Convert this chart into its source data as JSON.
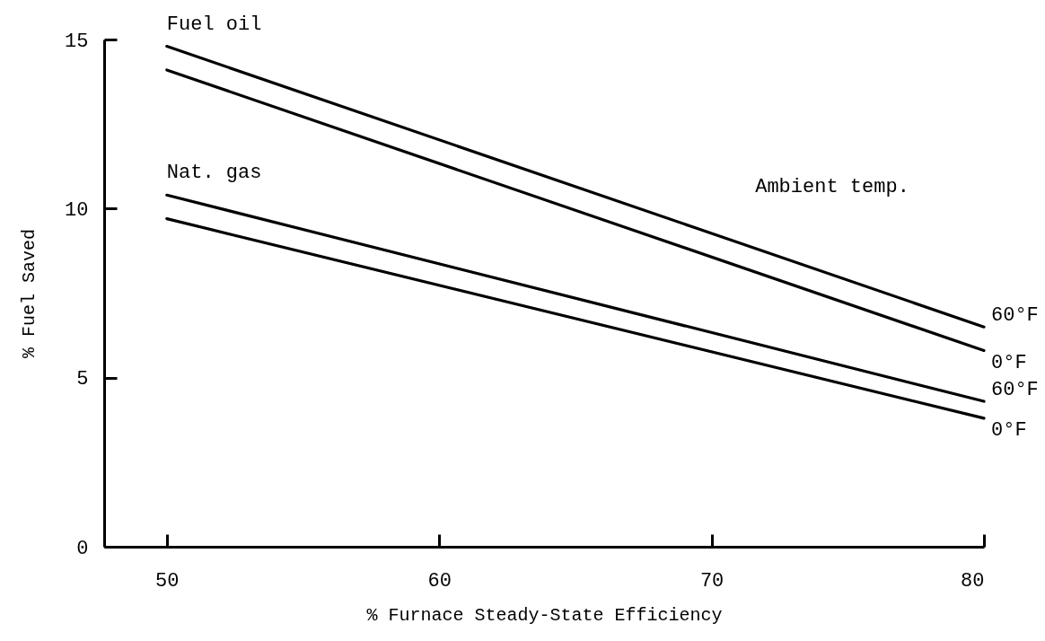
{
  "chart_data": {
    "type": "line",
    "xlabel": "% Furnace Steady-State Efficiency",
    "ylabel": "% Fuel Saved",
    "xlim": [
      47.7,
      80
    ],
    "ylim": [
      0,
      15
    ],
    "xticks": [
      50,
      60,
      70,
      80
    ],
    "yticks": [
      0,
      5,
      10,
      15
    ],
    "grid": false,
    "x": [
      50,
      80
    ],
    "annotations": [
      {
        "text": "Fuel oil",
        "x": 50,
        "y": 14.8
      },
      {
        "text": "Nat. gas",
        "x": 50,
        "y": 10.4
      },
      "Ambient temp."
    ],
    "series": [
      {
        "name": "60°F",
        "color": "#000000",
        "values": [
          14.8,
          6.5
        ]
      },
      {
        "name": "0°F",
        "color": "#000000",
        "values": [
          14.1,
          5.8
        ]
      },
      {
        "name": "60°F",
        "color": "#000000",
        "values": [
          10.4,
          4.3
        ]
      },
      {
        "name": "0°F",
        "color": "#000000",
        "values": [
          9.7,
          3.8
        ]
      }
    ]
  }
}
